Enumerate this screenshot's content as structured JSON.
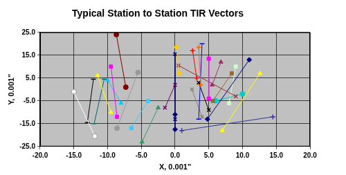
{
  "chart_data": {
    "type": "scatter",
    "title": "Typical Station to Station TIR Vectors",
    "x_label": "X, 0.001\"",
    "y_label": "Y, 0.001\"",
    "xlim": [
      -20,
      20
    ],
    "xticks": [
      {
        "value": -20,
        "label": "-20.0"
      },
      {
        "value": -15,
        "label": "-15.0"
      },
      {
        "value": -10,
        "label": "-10.0"
      },
      {
        "value": -5,
        "label": "-5.0"
      },
      {
        "value": 0,
        "label": "0.0"
      },
      {
        "value": 5,
        "label": "5.0"
      },
      {
        "value": 10,
        "label": "10.0"
      },
      {
        "value": 15,
        "label": "15.0"
      },
      {
        "value": 20,
        "label": "20.0"
      }
    ],
    "ylim": [
      -25,
      25
    ],
    "yticks": [
      {
        "value": -25,
        "label": "-25.0"
      },
      {
        "value": -15,
        "label": "-15.0"
      },
      {
        "value": -5,
        "label": "-5.0"
      },
      {
        "value": 5,
        "label": "5.0"
      },
      {
        "value": 15,
        "label": "15.0"
      },
      {
        "value": 25,
        "label": "25.0"
      }
    ],
    "grid": true,
    "series": [
      {
        "color": "#ffffff",
        "marker": "circle",
        "x": [
          -15.0,
          -11.9
        ],
        "y": [
          -1.0,
          -20.5
        ]
      },
      {
        "color": "#000000",
        "marker": "dash",
        "x": [
          -13.0,
          -12.1
        ],
        "y": [
          -14.5,
          4.5
        ]
      },
      {
        "color": "#ffff00",
        "marker": "triangle",
        "x": [
          -11.5,
          -9.5
        ],
        "y": [
          6.0,
          -10.0
        ]
      },
      {
        "color": "#006666",
        "marker": "dash",
        "x": [
          -10.5,
          -12.0
        ],
        "y": [
          4.5,
          -15.0
        ]
      },
      {
        "color": "#ff00ff",
        "marker": "square",
        "x": [
          -9.5,
          -8.6
        ],
        "y": [
          10.0,
          -12.0
        ]
      },
      {
        "color": "#00ccff",
        "marker": "triangle",
        "x": [
          -10.0,
          -8.0
        ],
        "y": [
          4.0,
          -6.0
        ]
      },
      {
        "color": "#999999",
        "marker": "circle",
        "x": [
          -5.5,
          -8.6
        ],
        "y": [
          7.5,
          -17.0
        ]
      },
      {
        "color": "#33ccff",
        "marker": "square",
        "x": [
          -6.5,
          -4.0
        ],
        "y": [
          -17.0,
          -5.0
        ]
      },
      {
        "color": "#800000",
        "marker": "circle",
        "x": [
          -8.7,
          -7.3
        ],
        "y": [
          24.0,
          1.0
        ]
      },
      {
        "color": "#339966",
        "marker": "triangle",
        "x": [
          -4.9,
          -2.5
        ],
        "y": [
          -23.0,
          -8.0
        ]
      },
      {
        "color": "#660066",
        "marker": "x",
        "x": [
          0.0,
          -1.5
        ],
        "y": [
          2.0,
          -8.0
        ]
      },
      {
        "color": "#ffcc00",
        "marker": "diamond",
        "x": [
          0.2,
          0.6
        ],
        "y": [
          18.5,
          7.0
        ]
      },
      {
        "color": "#000080",
        "marker": "x",
        "x": [
          0.0,
          0.0
        ],
        "y": [
          15.5,
          -13.0
        ]
      },
      {
        "color": "#000080",
        "marker": "diamond",
        "x": [
          0.0,
          0.0
        ],
        "y": [
          -11.0,
          -17.5
        ]
      },
      {
        "color": "#ff6600",
        "marker": "plus",
        "x": [
          3.5,
          3.8
        ],
        "y": [
          18.5,
          2.0
        ]
      },
      {
        "color": "#0000ff",
        "marker": "dash",
        "x": [
          4.0,
          3.5
        ],
        "y": [
          20.0,
          -13.0
        ]
      },
      {
        "color": "#ff00ff",
        "marker": "square",
        "x": [
          5.0,
          5.0
        ],
        "y": [
          13.5,
          -4.0
        ]
      },
      {
        "color": "#993333",
        "marker": "x",
        "x": [
          0.5,
          9.0
        ],
        "y": [
          10.5,
          -3.0
        ]
      },
      {
        "color": "#993366",
        "marker": "triangle",
        "x": [
          6.8,
          5.5
        ],
        "y": [
          12.0,
          2.0
        ]
      },
      {
        "color": "#000080",
        "marker": "diamond",
        "x": [
          11.0,
          4.8
        ],
        "y": [
          13.0,
          -13.0
        ]
      },
      {
        "color": "#996633",
        "marker": "square",
        "x": [
          8.4,
          5.6
        ],
        "y": [
          7.0,
          -5.0
        ]
      },
      {
        "color": "#ffff00",
        "marker": "triangle",
        "x": [
          12.6,
          7.0
        ],
        "y": [
          7.0,
          -18.0
        ]
      },
      {
        "color": "#333399",
        "marker": "plus",
        "x": [
          14.5,
          1.0
        ],
        "y": [
          -12.0,
          -18.0
        ]
      },
      {
        "color": "#ff0000",
        "marker": "plus",
        "x": [
          2.6,
          3.2
        ],
        "y": [
          17.0,
          5.0
        ]
      },
      {
        "color": "#00cccc",
        "marker": "circle",
        "x": [
          6.0,
          10.0
        ],
        "y": [
          -5.0,
          -2.0
        ]
      },
      {
        "color": "#ccffcc",
        "marker": "square",
        "x": [
          9.0,
          8.0
        ],
        "y": [
          10.0,
          -6.0
        ]
      },
      {
        "color": "#000000",
        "marker": "x",
        "x": [
          3.5,
          5.0
        ],
        "y": [
          3.0,
          -9.0
        ]
      },
      {
        "color": "#808080",
        "marker": "x",
        "x": [
          4.0,
          2.5
        ],
        "y": [
          -12.0,
          0.0
        ]
      }
    ]
  }
}
